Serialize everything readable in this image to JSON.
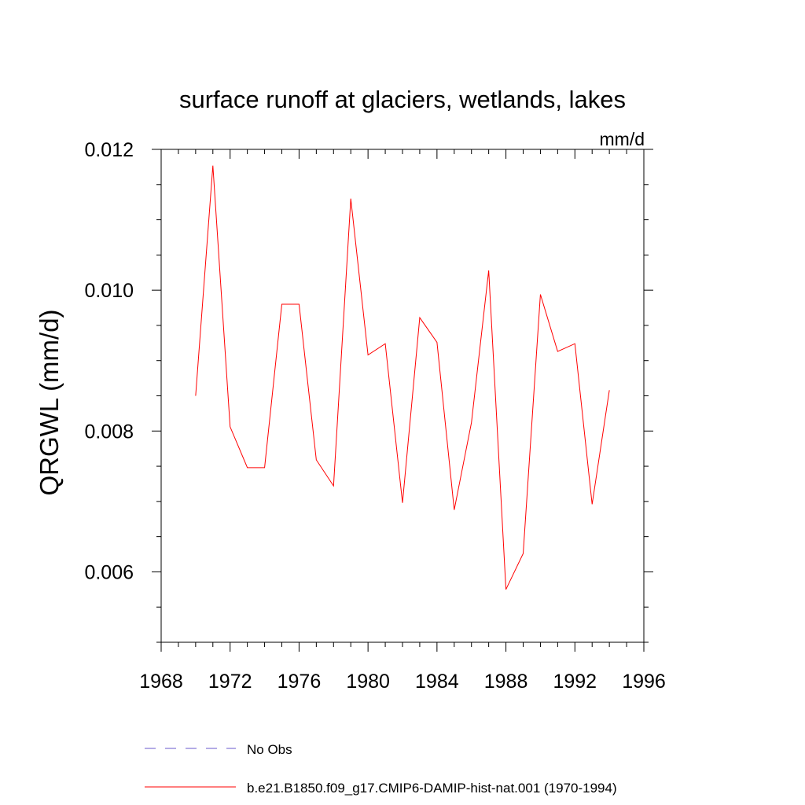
{
  "chart_data": {
    "type": "line",
    "title": "surface runoff at glaciers, wetlands, lakes",
    "units_label": "mm/d",
    "xlabel": "",
    "ylabel": "QRGWL  (mm/d)",
    "xlim": [
      1968,
      1996
    ],
    "ylim": [
      0.005,
      0.012
    ],
    "xticks": [
      1968,
      1972,
      1976,
      1980,
      1984,
      1988,
      1992,
      1996
    ],
    "yticks": [
      0.006,
      0.008,
      0.01,
      0.012
    ],
    "ytick_labels": [
      "0.006",
      "0.008",
      "0.010",
      "0.012"
    ],
    "x_minor_step": 1,
    "y_minor_step": 0.0005,
    "grid": false,
    "legend_position": "bottom",
    "series": [
      {
        "name": "No Obs",
        "color": "#6a5acd",
        "dash": "dashed",
        "x": [],
        "values": []
      },
      {
        "name": "b.e21.B1850.f09_g17.CMIP6-DAMIP-hist-nat.001 (1970-1994)",
        "color": "#ff0000",
        "dash": "solid",
        "x": [
          1970,
          1971,
          1972,
          1973,
          1974,
          1975,
          1976,
          1977,
          1978,
          1979,
          1980,
          1981,
          1982,
          1983,
          1984,
          1985,
          1986,
          1987,
          1988,
          1989,
          1990,
          1991,
          1992,
          1993,
          1994
        ],
        "values": [
          0.0085,
          0.01177,
          0.00806,
          0.00748,
          0.00748,
          0.0098,
          0.0098,
          0.00759,
          0.00722,
          0.0113,
          0.00908,
          0.00924,
          0.00698,
          0.00961,
          0.00926,
          0.00688,
          0.00812,
          0.01028,
          0.00575,
          0.00626,
          0.00994,
          0.00913,
          0.00924,
          0.00696,
          0.00858
        ]
      }
    ]
  }
}
